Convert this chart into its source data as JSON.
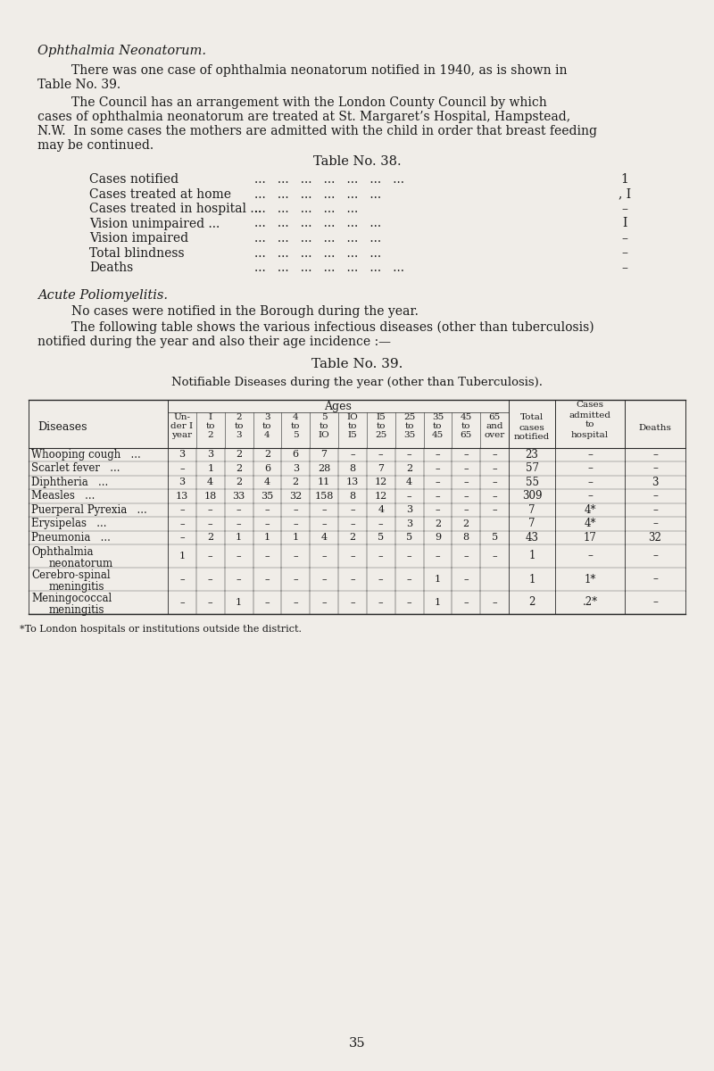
{
  "bg_color": "#f0ede8",
  "text_color": "#1a1a1a",
  "title_italic": "Ophthalmia Neonatorum.",
  "para1_line1": "There was one case of ophthalmia neonatorum notified in 1940, as is shown in",
  "para1_line2": "Table No. 39.",
  "para2_lines": [
    "The Council has an arrangement with the London County Council by which",
    "cases of ophthalmia neonatorum are treated at St. Margaret’s Hospital, Hampstead,",
    "N.W.  In some cases the mothers are admitted with the child in order that breast feeding",
    "may be continued."
  ],
  "table38_title": "Table No. 38.",
  "table38_rows": [
    {
      "label": "Cases notified",
      "dots": "...   ...   ...   ...   ...   ...   ...",
      "value": "1"
    },
    {
      "label": "Cases treated at home",
      "dots": "...   ...   ...   ...   ...   ...",
      "value": ", I"
    },
    {
      "label": "Cases treated in hospital ...",
      "dots": "...   ...   ...   ...   ...",
      "value": "–"
    },
    {
      "label": "Vision unimpaired ...",
      "dots": "...   ...   ...   ...   ...   ...",
      "value": "I"
    },
    {
      "label": "Vision impaired",
      "dots": "...   ...   ...   ...   ...   ...",
      "value": "–"
    },
    {
      "label": "Total blindness",
      "dots": "...   ...   ...   ...   ...   ...",
      "value": "–"
    },
    {
      "label": "Deaths",
      "dots": "...   ...   ...   ...   ...   ...   ...",
      "value": "–"
    }
  ],
  "acute_title": "Acute Poliomyelitis.",
  "para3": "No cases were notified in the Borough during the year.",
  "para4_line1": "The following table shows the various infectious diseases (other than tuberculosis)",
  "para4_line2": "notified during the year and also their age incidence :—",
  "table39_title": "Table No. 39.",
  "table39_subtitle": "Notifiable Diseases during the year (other than Tuberculosis).",
  "diseases": [
    {
      "name": "Whooping cough",
      "dots": "...",
      "ages": [
        "3",
        "3",
        "2",
        "2",
        "6",
        "7",
        "–",
        "–",
        "–",
        "–",
        "–",
        "–"
      ],
      "total": "23",
      "admitted": "–",
      "deaths": "–"
    },
    {
      "name": "Scarlet fever",
      "dots": "...",
      "ages": [
        "–",
        "1",
        "2",
        "6",
        "3",
        "28",
        "8",
        "7",
        "2",
        "–",
        "–",
        "–"
      ],
      "total": "57",
      "admitted": "–",
      "deaths": "–"
    },
    {
      "name": "Diphtheria",
      "dots": "...",
      "ages": [
        "3",
        "4",
        "2",
        "4",
        "2",
        "11",
        "13",
        "12",
        "4",
        "–",
        "–",
        "–"
      ],
      "total": "55",
      "admitted": "–",
      "deaths": "3"
    },
    {
      "name": "Measles",
      "dots": "...",
      "ages": [
        "13",
        "18",
        "33",
        "35",
        "32",
        "158",
        "8",
        "12",
        "–",
        "–",
        "–",
        "–"
      ],
      "total": "309",
      "admitted": "–",
      "deaths": "–"
    },
    {
      "name": "Puerperal Pyrexia",
      "dots": "...",
      "ages": [
        "–",
        "–",
        "–",
        "–",
        "–",
        "–",
        "–",
        "4",
        "3",
        "–",
        "–",
        "–"
      ],
      "total": "7",
      "admitted": "4*",
      "deaths": "–"
    },
    {
      "name": "Erysipelas",
      "dots": "...",
      "ages": [
        "–",
        "–",
        "–",
        "–",
        "–",
        "–",
        "–",
        "–",
        "3",
        "2",
        "2",
        ""
      ],
      "total": "7",
      "admitted": "4*",
      "deaths": "–"
    },
    {
      "name": "Pneumonia",
      "dots": "...",
      "ages": [
        "–",
        "2",
        "1",
        "1",
        "1",
        "4",
        "2",
        "5",
        "5",
        "9",
        "8",
        "5"
      ],
      "total": "43",
      "admitted": "17",
      "deaths": "32"
    },
    {
      "name": "Ophthalmia",
      "name2": "neonatorum",
      "dots": "",
      "ages": [
        "1",
        "–",
        "–",
        "–",
        "–",
        "–",
        "–",
        "–",
        "–",
        "–",
        "–",
        "–"
      ],
      "total": "1",
      "admitted": "–",
      "deaths": "–"
    },
    {
      "name": "Cerebro-spinal",
      "name2": "meningitis",
      "dots": "",
      "ages": [
        "–",
        "–",
        "–",
        "–",
        "–",
        "–",
        "–",
        "–",
        "–",
        "1",
        "–",
        ""
      ],
      "total": "1",
      "admitted": "1*",
      "deaths": "–"
    },
    {
      "name": "Meningococcal",
      "name2": "meningitis",
      "dots": "",
      "ages": [
        "–",
        "–",
        "1",
        "–",
        "–",
        "–",
        "–",
        "–",
        "–",
        "1",
        "–",
        "–"
      ],
      "total": "2",
      "admitted": ".2*",
      "deaths": "–"
    }
  ],
  "footnote": "*To London hospitals or institutions outside the district.",
  "page_number": "35"
}
